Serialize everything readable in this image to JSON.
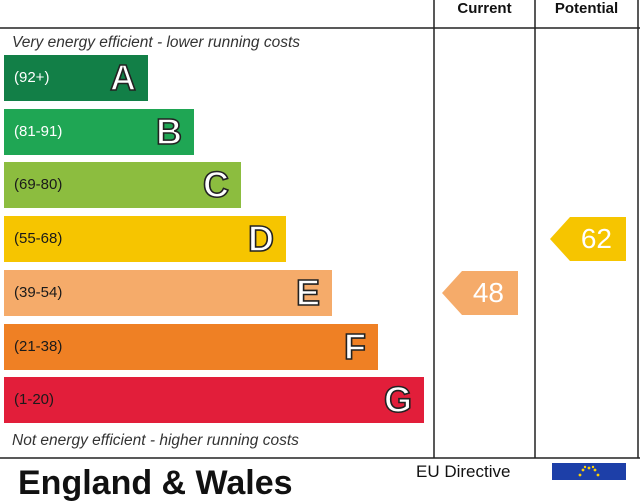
{
  "header": {
    "current": "Current",
    "potential": "Potential"
  },
  "notes": {
    "top": "Very energy efficient - lower running costs",
    "bottom": "Not energy efficient - higher running costs"
  },
  "chart_data": {
    "type": "bar",
    "title": "",
    "bands": [
      {
        "letter": "A",
        "range": "(92+)",
        "min": 92,
        "max": 100,
        "color": "#127f47"
      },
      {
        "letter": "B",
        "range": "(81-91)",
        "min": 81,
        "max": 91,
        "color": "#1fa654"
      },
      {
        "letter": "C",
        "range": "(69-80)",
        "min": 69,
        "max": 80,
        "color": "#8cbd3f"
      },
      {
        "letter": "D",
        "range": "(55-68)",
        "min": 55,
        "max": 68,
        "color": "#f6c500"
      },
      {
        "letter": "E",
        "range": "(39-54)",
        "min": 39,
        "max": 54,
        "color": "#f5ab6a"
      },
      {
        "letter": "F",
        "range": "(21-38)",
        "min": 21,
        "max": 38,
        "color": "#ef8024"
      },
      {
        "letter": "G",
        "range": "(1-20)",
        "min": 1,
        "max": 20,
        "color": "#e21e3a"
      }
    ],
    "current": {
      "value": 48,
      "band": "E",
      "color": "#f5ab6a"
    },
    "potential": {
      "value": 62,
      "band": "D",
      "color": "#f6c500"
    }
  },
  "footer": {
    "region": "England & Wales",
    "eu_directive": "EU Directive"
  }
}
